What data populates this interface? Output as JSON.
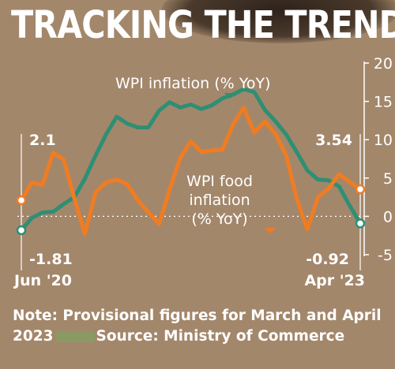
{
  "headline": "TRACKING THE TREND",
  "note": {
    "text": "Note: Provisional figures for March and April 2023",
    "source": "Source: Ministry of Commerce"
  },
  "colors": {
    "background": "#a3876b",
    "wpi_series": "#2e8f74",
    "food_series": "#f07c22",
    "text": "#ffffff"
  },
  "chart_data": {
    "type": "line",
    "title": "TRACKING THE TREND",
    "ylim": [
      -5,
      20
    ],
    "yticks": [
      -5,
      0,
      5,
      10,
      15,
      20
    ],
    "grid": false,
    "y_axis_side": "right",
    "x_start_label": "Jun '20",
    "x_end_label": "Apr '23",
    "series": [
      {
        "name": "WPI inflation (% YoY)",
        "color": "#2e8f74",
        "values": [
          -1.81,
          -0.2,
          0.5,
          0.6,
          1.6,
          2.5,
          4.9,
          7.9,
          10.7,
          13.0,
          12.1,
          11.6,
          11.6,
          13.8,
          14.9,
          14.2,
          14.6,
          14.0,
          14.5,
          15.4,
          15.9,
          16.6,
          16.2,
          13.9,
          12.4,
          10.7,
          8.4,
          6.0,
          4.8,
          4.7,
          3.9,
          1.4,
          -0.92
        ],
        "start_label": "-1.81",
        "end_label": "-0.92"
      },
      {
        "name": "WPI food\ninflation\n(% YoY)",
        "color": "#f07c22",
        "values": [
          2.1,
          4.4,
          4.1,
          8.3,
          7.4,
          2.4,
          -2.3,
          3.1,
          4.4,
          4.8,
          4.2,
          2.1,
          0.5,
          -1.0,
          3.5,
          7.6,
          9.8,
          8.4,
          8.6,
          8.7,
          12.0,
          14.2,
          10.9,
          12.4,
          10.7,
          8.0,
          2.3,
          -1.7,
          2.5,
          3.6,
          5.5,
          4.5,
          3.54
        ],
        "start_label": "2.1",
        "end_label": "3.54"
      }
    ]
  }
}
